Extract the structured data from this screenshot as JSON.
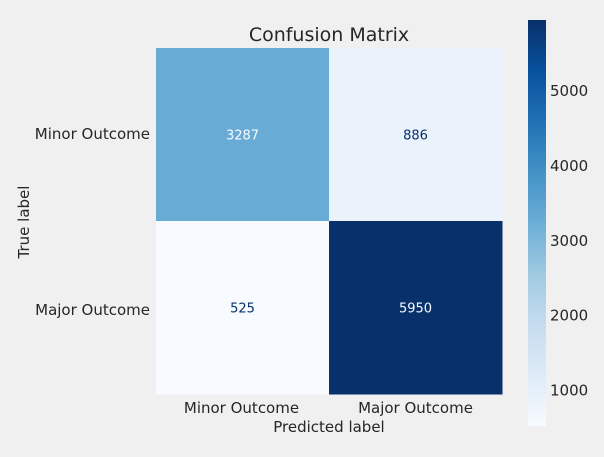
{
  "chart_data": {
    "type": "heatmap",
    "title": "Confusion Matrix",
    "xlabel": "Predicted label",
    "ylabel": "True label",
    "x_categories": [
      "Minor Outcome",
      "Major Outcome"
    ],
    "y_categories": [
      "Minor Outcome",
      "Major Outcome"
    ],
    "values": [
      [
        3287,
        886
      ],
      [
        525,
        5950
      ]
    ],
    "colormap": "Blues",
    "color_range": [
      525,
      5950
    ],
    "colorbar_ticks": [
      1000,
      2000,
      3000,
      4000,
      5000
    ],
    "grid": false
  },
  "colors": {
    "background": "#f0f0f0",
    "text": "#262626",
    "light_cell_text": "#08306b",
    "dark_cell_text": "#f7fbff"
  }
}
